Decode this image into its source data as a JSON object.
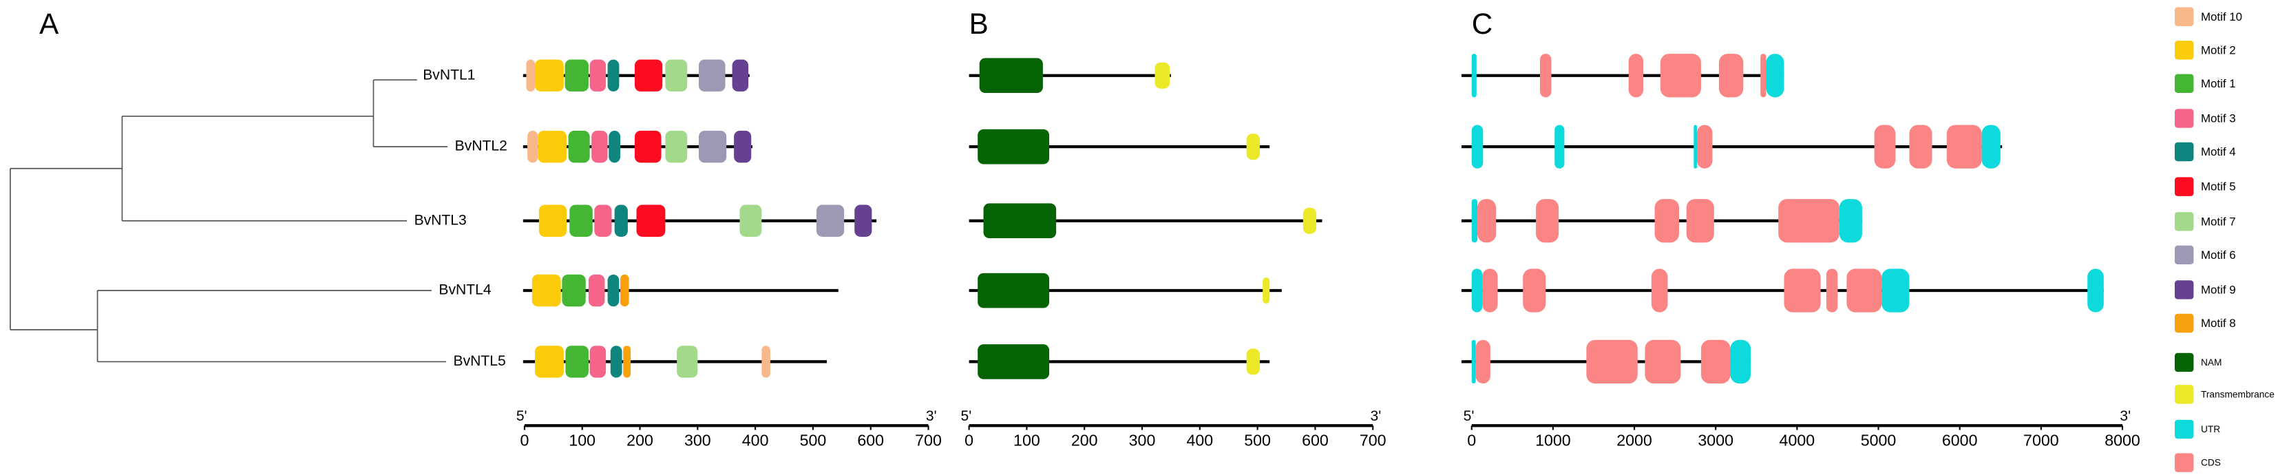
{
  "chart_data": [
    {
      "type": "motif",
      "label": "A",
      "five_prime": "5'",
      "three_prime": "3'",
      "xlim": [
        0,
        700
      ],
      "xticks": [
        0,
        100,
        200,
        300,
        400,
        500,
        600,
        700
      ],
      "genes": [
        {
          "name": "BvNTL1",
          "length": 390,
          "features": [
            {
              "motif": "Motif 10",
              "start": 3,
              "end": 18
            },
            {
              "motif": "Motif 2",
              "start": 18,
              "end": 68
            },
            {
              "motif": "Motif 1",
              "start": 70,
              "end": 111
            },
            {
              "motif": "Motif 3",
              "start": 113,
              "end": 141
            },
            {
              "motif": "Motif 4",
              "start": 144,
              "end": 164
            },
            {
              "motif": "Motif 5",
              "start": 191,
              "end": 239
            },
            {
              "motif": "Motif 7",
              "start": 244,
              "end": 282
            },
            {
              "motif": "Motif 6",
              "start": 302,
              "end": 348
            },
            {
              "motif": "Motif 9",
              "start": 360,
              "end": 388
            }
          ]
        },
        {
          "name": "BvNTL2",
          "length": 395,
          "features": [
            {
              "motif": "Motif 10",
              "start": 5,
              "end": 23
            },
            {
              "motif": "Motif 2",
              "start": 23,
              "end": 73
            },
            {
              "motif": "Motif 1",
              "start": 76,
              "end": 113
            },
            {
              "motif": "Motif 3",
              "start": 116,
              "end": 144
            },
            {
              "motif": "Motif 4",
              "start": 146,
              "end": 166
            },
            {
              "motif": "Motif 5",
              "start": 191,
              "end": 237
            },
            {
              "motif": "Motif 7",
              "start": 244,
              "end": 282
            },
            {
              "motif": "Motif 6",
              "start": 302,
              "end": 350
            },
            {
              "motif": "Motif 9",
              "start": 363,
              "end": 393
            }
          ]
        },
        {
          "name": "BvNTL3",
          "length": 610,
          "features": [
            {
              "motif": "Motif 2",
              "start": 25,
              "end": 73
            },
            {
              "motif": "Motif 1",
              "start": 78,
              "end": 118
            },
            {
              "motif": "Motif 3",
              "start": 121,
              "end": 151
            },
            {
              "motif": "Motif 4",
              "start": 156,
              "end": 179
            },
            {
              "motif": "Motif 5",
              "start": 194,
              "end": 244
            },
            {
              "motif": "Motif 7",
              "start": 373,
              "end": 411
            },
            {
              "motif": "Motif 6",
              "start": 506,
              "end": 554
            },
            {
              "motif": "Motif 9",
              "start": 572,
              "end": 602
            }
          ]
        },
        {
          "name": "BvNTL4",
          "length": 544,
          "features": [
            {
              "motif": "Motif 2",
              "start": 13,
              "end": 63
            },
            {
              "motif": "Motif 1",
              "start": 65,
              "end": 106
            },
            {
              "motif": "Motif 3",
              "start": 111,
              "end": 139
            },
            {
              "motif": "Motif 4",
              "start": 144,
              "end": 164
            },
            {
              "motif": "Motif 8",
              "start": 166,
              "end": 181
            }
          ]
        },
        {
          "name": "BvNTL5",
          "length": 524,
          "features": [
            {
              "motif": "Motif 2",
              "start": 18,
              "end": 68
            },
            {
              "motif": "Motif 1",
              "start": 71,
              "end": 111
            },
            {
              "motif": "Motif 3",
              "start": 113,
              "end": 141
            },
            {
              "motif": "Motif 4",
              "start": 149,
              "end": 169
            },
            {
              "motif": "Motif 8",
              "start": 171,
              "end": 184
            },
            {
              "motif": "Motif 7",
              "start": 264,
              "end": 300
            },
            {
              "motif": "Motif 10",
              "start": 411,
              "end": 426
            }
          ]
        }
      ]
    },
    {
      "type": "domain",
      "label": "B",
      "five_prime": "5'",
      "three_prime": "3'",
      "xlim": [
        0,
        700
      ],
      "xticks": [
        0,
        100,
        200,
        300,
        400,
        500,
        600,
        700
      ],
      "genes": [
        {
          "length": 350,
          "features": [
            {
              "motif": "NAM",
              "start": 18,
              "end": 128
            },
            {
              "motif": "Transmembrance",
              "start": 322,
              "end": 348
            }
          ]
        },
        {
          "length": 521,
          "features": [
            {
              "motif": "NAM",
              "start": 15,
              "end": 139
            },
            {
              "motif": "Transmembrance",
              "start": 481,
              "end": 504
            }
          ]
        },
        {
          "length": 612,
          "features": [
            {
              "motif": "NAM",
              "start": 25,
              "end": 151
            },
            {
              "motif": "Transmembrance",
              "start": 579,
              "end": 602
            }
          ]
        },
        {
          "length": 542,
          "features": [
            {
              "motif": "NAM",
              "start": 15,
              "end": 139
            },
            {
              "motif": "Transmembrance",
              "start": 509,
              "end": 521
            }
          ]
        },
        {
          "length": 521,
          "features": [
            {
              "motif": "NAM",
              "start": 15,
              "end": 139
            },
            {
              "motif": "Transmembrance",
              "start": 481,
              "end": 504
            }
          ]
        }
      ]
    },
    {
      "type": "gene-structure",
      "label": "C",
      "five_prime": "5'",
      "three_prime": "3'",
      "xlim": [
        0,
        8000
      ],
      "xticks": [
        0,
        1000,
        2000,
        3000,
        4000,
        5000,
        6000,
        7000,
        8000
      ],
      "genes": [
        {
          "length": 3840,
          "features": [
            {
              "motif": "UTR",
              "start": 0,
              "end": 60
            },
            {
              "motif": "CDS",
              "start": 840,
              "end": 980
            },
            {
              "motif": "CDS",
              "start": 1930,
              "end": 2110
            },
            {
              "motif": "CDS",
              "start": 2320,
              "end": 2820
            },
            {
              "motif": "CDS",
              "start": 3040,
              "end": 3340
            },
            {
              "motif": "CDS",
              "start": 3550,
              "end": 3620
            },
            {
              "motif": "UTR",
              "start": 3620,
              "end": 3840
            }
          ]
        },
        {
          "length": 6520,
          "features": [
            {
              "motif": "UTR",
              "start": 0,
              "end": 140
            },
            {
              "motif": "UTR",
              "start": 1020,
              "end": 1140
            },
            {
              "motif": "UTR",
              "start": 2730,
              "end": 2770
            },
            {
              "motif": "CDS",
              "start": 2770,
              "end": 2960
            },
            {
              "motif": "CDS",
              "start": 4950,
              "end": 5210
            },
            {
              "motif": "CDS",
              "start": 5380,
              "end": 5660
            },
            {
              "motif": "CDS",
              "start": 5840,
              "end": 6270
            },
            {
              "motif": "UTR",
              "start": 6270,
              "end": 6500
            }
          ]
        },
        {
          "length": 4800,
          "features": [
            {
              "motif": "UTR",
              "start": 0,
              "end": 70
            },
            {
              "motif": "CDS",
              "start": 70,
              "end": 300
            },
            {
              "motif": "CDS",
              "start": 790,
              "end": 1070
            },
            {
              "motif": "CDS",
              "start": 2250,
              "end": 2550
            },
            {
              "motif": "CDS",
              "start": 2640,
              "end": 2980
            },
            {
              "motif": "CDS",
              "start": 3770,
              "end": 4520
            },
            {
              "motif": "UTR",
              "start": 4520,
              "end": 4800
            }
          ]
        },
        {
          "length": 7770,
          "features": [
            {
              "motif": "UTR",
              "start": 0,
              "end": 130
            },
            {
              "motif": "CDS",
              "start": 130,
              "end": 320
            },
            {
              "motif": "CDS",
              "start": 630,
              "end": 910
            },
            {
              "motif": "CDS",
              "start": 2210,
              "end": 2410
            },
            {
              "motif": "CDS",
              "start": 3840,
              "end": 4290
            },
            {
              "motif": "CDS",
              "start": 4360,
              "end": 4500
            },
            {
              "motif": "CDS",
              "start": 4610,
              "end": 5040
            },
            {
              "motif": "UTR",
              "start": 5040,
              "end": 5380
            },
            {
              "motif": "UTR",
              "start": 7570,
              "end": 7770
            }
          ]
        },
        {
          "length": 3430,
          "features": [
            {
              "motif": "UTR",
              "start": 0,
              "end": 50
            },
            {
              "motif": "CDS",
              "start": 50,
              "end": 230
            },
            {
              "motif": "CDS",
              "start": 1410,
              "end": 2040
            },
            {
              "motif": "CDS",
              "start": 2130,
              "end": 2570
            },
            {
              "motif": "CDS",
              "start": 2820,
              "end": 3180
            },
            {
              "motif": "UTR",
              "start": 3180,
              "end": 3430
            }
          ]
        }
      ]
    }
  ],
  "legend": [
    {
      "name": "Motif 10",
      "color": "#f9b88a"
    },
    {
      "name": "Motif 2",
      "color": "#fccc0a"
    },
    {
      "name": "Motif 1",
      "color": "#45b534"
    },
    {
      "name": "Motif 3",
      "color": "#f6648a"
    },
    {
      "name": "Motif 4",
      "color": "#0e857e"
    },
    {
      "name": "Motif 5",
      "color": "#fc0c20"
    },
    {
      "name": "Motif 7",
      "color": "#a3d98a"
    },
    {
      "name": "Motif 6",
      "color": "#9e98b4"
    },
    {
      "name": "Motif 9",
      "color": "#674191"
    },
    {
      "name": "Motif 8",
      "color": "#f9a00e"
    },
    {
      "name": "NAM",
      "color": "#046404"
    },
    {
      "name": "Transmembrance",
      "color": "#ecea28"
    },
    {
      "name": "UTR",
      "color": "#0ed9dc"
    },
    {
      "name": "CDS",
      "color": "#fb8585"
    }
  ]
}
